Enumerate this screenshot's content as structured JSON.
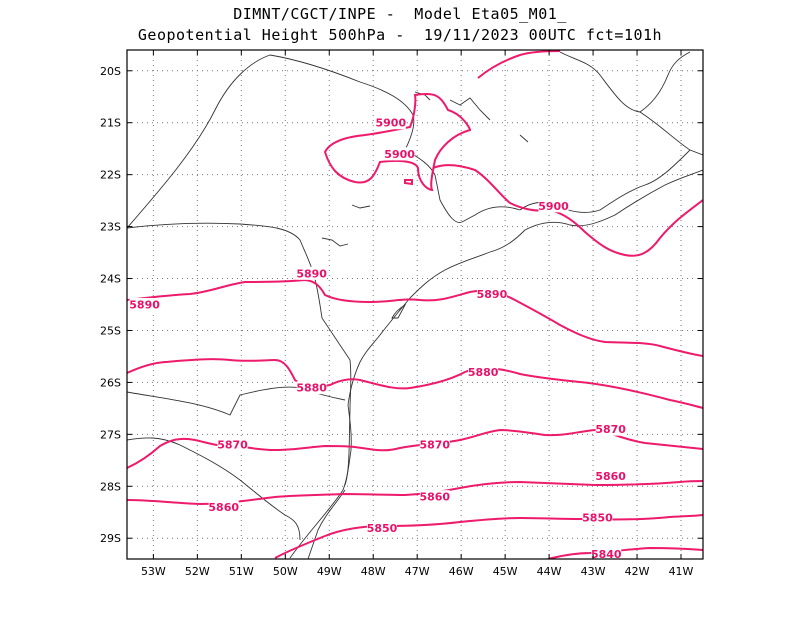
{
  "title": {
    "line1": "DIMNT/CGCT/INPE -  Model Eta05_M01_",
    "line2": "Geopotential Height 500hPa -  19/11/2023 00UTC fct=101h"
  },
  "map": {
    "lon_range": [
      -53.6,
      -40.5
    ],
    "lat_range": [
      -29.4,
      -19.6
    ],
    "lat_ticks": [
      {
        "value": -20,
        "label": "20S"
      },
      {
        "value": -21,
        "label": "21S"
      },
      {
        "value": -22,
        "label": "22S"
      },
      {
        "value": -23,
        "label": "23S"
      },
      {
        "value": -24,
        "label": "24S"
      },
      {
        "value": -25,
        "label": "25S"
      },
      {
        "value": -26,
        "label": "26S"
      },
      {
        "value": -27,
        "label": "27S"
      },
      {
        "value": -28,
        "label": "28S"
      },
      {
        "value": -29,
        "label": "29S"
      }
    ],
    "lon_ticks": [
      {
        "value": -53,
        "label": "53W"
      },
      {
        "value": -52,
        "label": "52W"
      },
      {
        "value": -51,
        "label": "51W"
      },
      {
        "value": -50,
        "label": "50W"
      },
      {
        "value": -49,
        "label": "49W"
      },
      {
        "value": -48,
        "label": "48W"
      },
      {
        "value": -47,
        "label": "47W"
      },
      {
        "value": -46,
        "label": "46W"
      },
      {
        "value": -45,
        "label": "45W"
      },
      {
        "value": -44,
        "label": "44W"
      },
      {
        "value": -43,
        "label": "43W"
      },
      {
        "value": -42,
        "label": "42W"
      },
      {
        "value": -41,
        "label": "41W"
      }
    ],
    "grid": true,
    "contour_color": "#ee1a6c"
  },
  "contours": [
    {
      "level": 5900,
      "labels": [
        {
          "text": "5900",
          "lon": -47.6,
          "lat": -21.0
        },
        {
          "text": "5900",
          "lon": -47.4,
          "lat": -21.6
        },
        {
          "text": "5900",
          "lon": -43.9,
          "lat": -22.6
        }
      ]
    },
    {
      "level": 5890,
      "labels": [
        {
          "text": "5890",
          "lon": -53.2,
          "lat": -24.5
        },
        {
          "text": "5890",
          "lon": -49.4,
          "lat": -23.9
        },
        {
          "text": "5890",
          "lon": -45.3,
          "lat": -24.3
        }
      ]
    },
    {
      "level": 5880,
      "labels": [
        {
          "text": "5880",
          "lon": -49.4,
          "lat": -26.1
        },
        {
          "text": "5880",
          "lon": -45.5,
          "lat": -25.8
        }
      ]
    },
    {
      "level": 5870,
      "labels": [
        {
          "text": "5870",
          "lon": -51.2,
          "lat": -27.2
        },
        {
          "text": "5870",
          "lon": -46.6,
          "lat": -27.2
        },
        {
          "text": "5870",
          "lon": -42.6,
          "lat": -26.9
        }
      ]
    },
    {
      "level": 5860,
      "labels": [
        {
          "text": "5860",
          "lon": -51.4,
          "lat": -28.4
        },
        {
          "text": "5860",
          "lon": -46.6,
          "lat": -28.2
        },
        {
          "text": "5860",
          "lon": -42.6,
          "lat": -27.8
        }
      ]
    },
    {
      "level": 5850,
      "labels": [
        {
          "text": "5850",
          "lon": -47.8,
          "lat": -28.8
        },
        {
          "text": "5850",
          "lon": -42.9,
          "lat": -28.6
        }
      ]
    },
    {
      "level": 5840,
      "labels": [
        {
          "text": "5840",
          "lon": -42.7,
          "lat": -29.3
        }
      ]
    }
  ]
}
